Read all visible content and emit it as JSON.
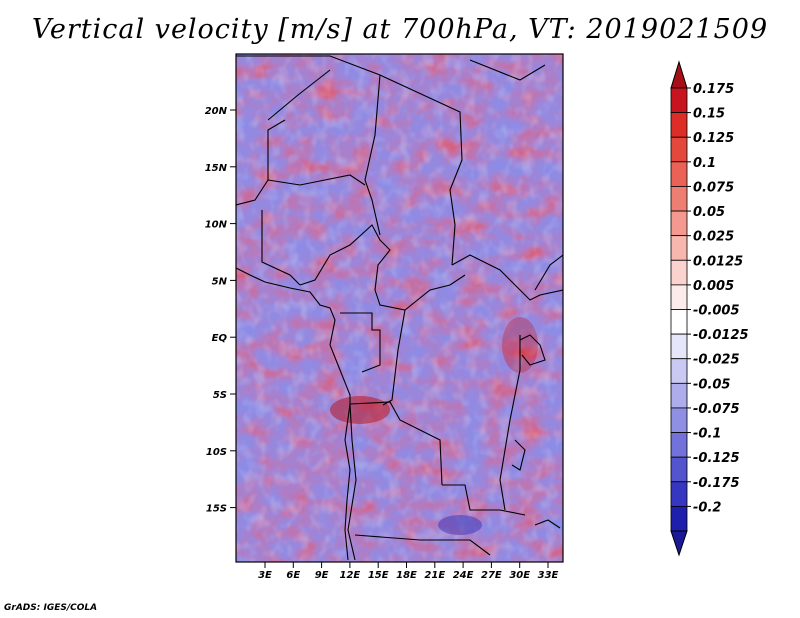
{
  "title": "Vertical velocity [m/s] at 700hPa, VT: 2019021509",
  "credit": "GrADS: IGES/COLA",
  "map": {
    "lat_labels": [
      "20N",
      "15N",
      "10N",
      "5N",
      "EQ",
      "5S",
      "10S",
      "15S"
    ],
    "lon_labels": [
      "3E",
      "6E",
      "9E",
      "12E",
      "15E",
      "18E",
      "21E",
      "24E",
      "27E",
      "30E",
      "33E"
    ]
  },
  "colorbar": {
    "levels": [
      "0.175",
      "0.15",
      "0.125",
      "0.1",
      "0.075",
      "0.05",
      "0.025",
      "0.0125",
      "0.005",
      "-0.005",
      "-0.0125",
      "-0.025",
      "-0.05",
      "-0.075",
      "-0.1",
      "-0.125",
      "-0.175",
      "-0.2"
    ],
    "colors": [
      "#a50f15",
      "#c8141e",
      "#de2d26",
      "#e4473c",
      "#ea6155",
      "#ef7e72",
      "#f3998f",
      "#f7b6ae",
      "#fbd3ce",
      "#fbeceb",
      "#ffffff",
      "#e6e6fa",
      "#c9c9f3",
      "#adadeb",
      "#8f8fe3",
      "#7272da",
      "#5454cf",
      "#3636c1",
      "#1f1fad",
      "#1a1a99"
    ]
  }
}
